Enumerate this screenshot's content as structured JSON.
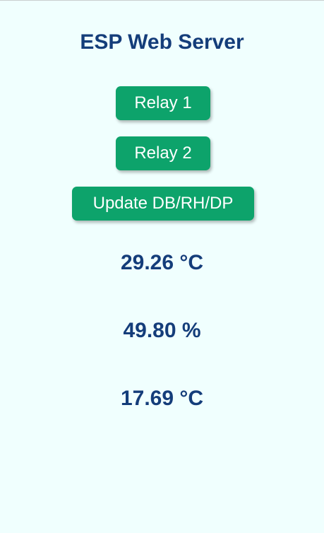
{
  "page": {
    "title": "ESP Web Server"
  },
  "controls": {
    "relay1_label": "Relay 1",
    "relay2_label": "Relay 2",
    "update_label": "Update DB/RH/DP"
  },
  "readings": {
    "dry_bulb": "29.26 °C",
    "relative_humidity": "49.80 %",
    "dew_point": "17.69 °C"
  },
  "colors": {
    "background": "#f0fffe",
    "text": "#143d7a",
    "button": "#0da36b",
    "button_text": "#ffffff"
  }
}
